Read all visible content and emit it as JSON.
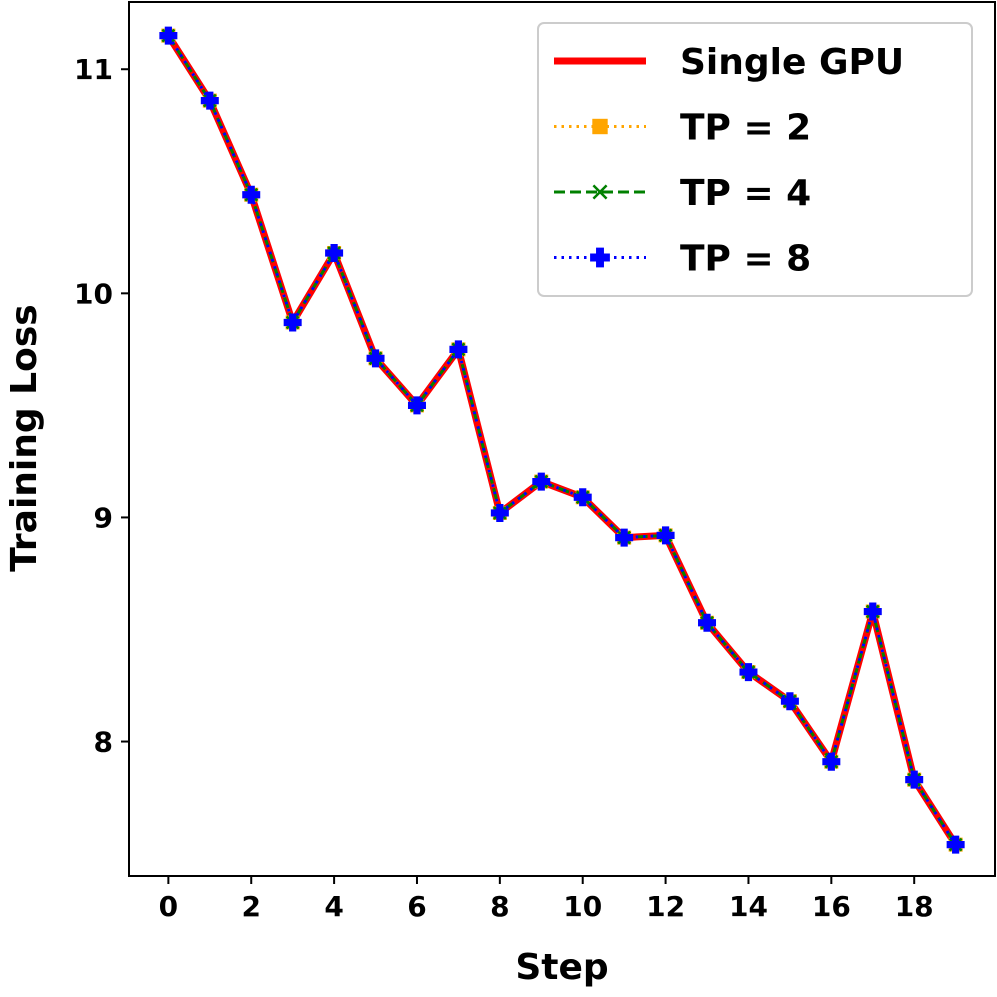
{
  "chart_data": {
    "type": "line",
    "title": "",
    "xlabel": "Step",
    "ylabel": "Training Loss",
    "x": [
      0,
      1,
      2,
      3,
      4,
      5,
      6,
      7,
      8,
      9,
      10,
      11,
      12,
      13,
      14,
      15,
      16,
      17,
      18,
      19
    ],
    "xlim": [
      -0.95,
      19.95
    ],
    "ylim": [
      7.4,
      11.3
    ],
    "xticks": [
      0,
      2,
      4,
      6,
      8,
      10,
      12,
      14,
      16,
      18
    ],
    "yticks": [
      8,
      9,
      10,
      11
    ],
    "legend_position": "top-right",
    "grid": false,
    "series": [
      {
        "name": "Single GPU",
        "color": "#ff0000",
        "line_style": "solid",
        "marker": "none",
        "values": [
          11.15,
          10.86,
          10.44,
          9.87,
          10.18,
          9.71,
          9.5,
          9.75,
          9.02,
          9.16,
          9.09,
          8.91,
          8.92,
          8.53,
          8.31,
          8.18,
          7.91,
          8.58,
          7.83,
          7.54
        ]
      },
      {
        "name": "TP = 2",
        "color": "#ffa500",
        "line_style": "dotted",
        "marker": "square",
        "values": [
          11.15,
          10.86,
          10.44,
          9.87,
          10.18,
          9.71,
          9.5,
          9.75,
          9.02,
          9.16,
          9.09,
          8.91,
          8.92,
          8.53,
          8.31,
          8.18,
          7.91,
          8.58,
          7.83,
          7.54
        ]
      },
      {
        "name": "TP = 4",
        "color": "#008000",
        "line_style": "dashed",
        "marker": "x",
        "values": [
          11.15,
          10.86,
          10.44,
          9.87,
          10.18,
          9.71,
          9.5,
          9.75,
          9.02,
          9.16,
          9.09,
          8.91,
          8.92,
          8.53,
          8.31,
          8.18,
          7.91,
          8.58,
          7.83,
          7.54
        ]
      },
      {
        "name": "TP = 8",
        "color": "#0000ff",
        "line_style": "dotted",
        "marker": "plus-filled",
        "values": [
          11.15,
          10.86,
          10.44,
          9.87,
          10.18,
          9.71,
          9.5,
          9.75,
          9.02,
          9.16,
          9.09,
          8.91,
          8.92,
          8.53,
          8.31,
          8.18,
          7.91,
          8.58,
          7.83,
          7.54
        ]
      }
    ]
  }
}
